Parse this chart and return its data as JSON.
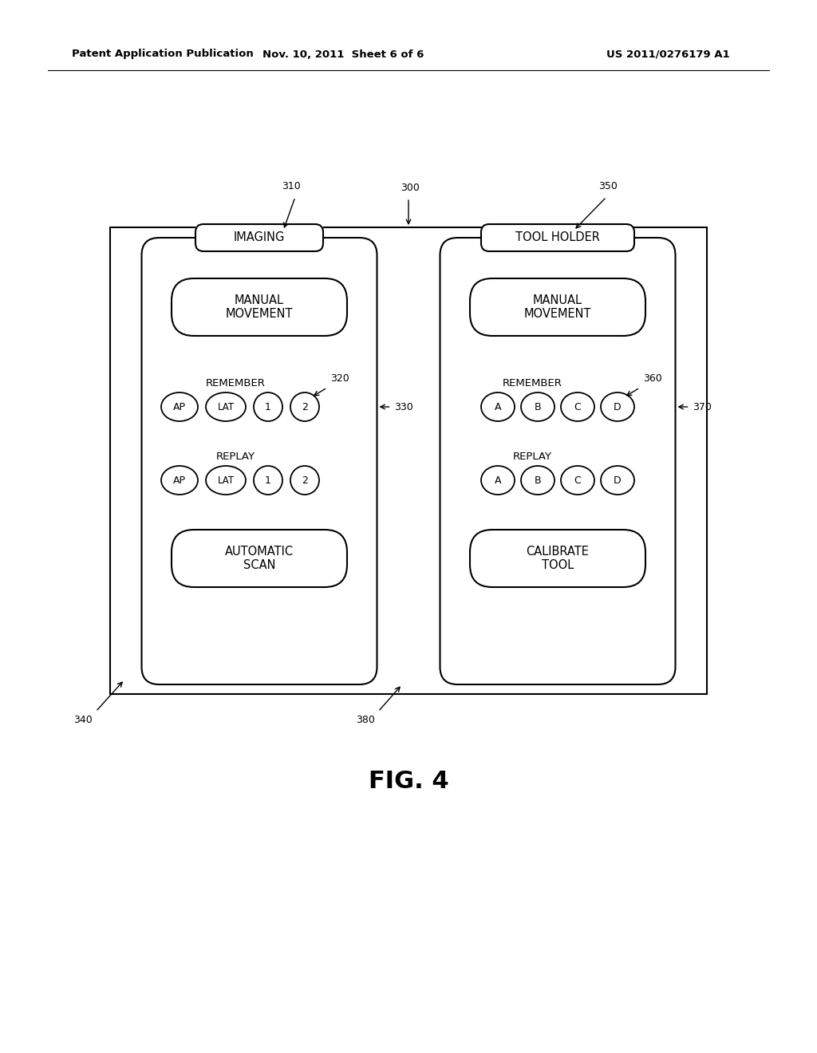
{
  "bg_color": "#ffffff",
  "header_left": "Patent Application Publication",
  "header_mid": "Nov. 10, 2011  Sheet 6 of 6",
  "header_right": "US 2011/0276179 A1",
  "fig_label": "FIG. 4",
  "imaging_title": "IMAGING",
  "tool_holder_title": "TOOL HOLDER",
  "manual_movement": "MANUAL\nMOVEMENT",
  "remember": "REMEMBER",
  "remember_btns_1": [
    "AP",
    "LAT",
    "1",
    "2"
  ],
  "replay": "REPLAY",
  "replay_btns_1": [
    "AP",
    "LAT",
    "1",
    "2"
  ],
  "auto_scan": "AUTOMATIC\nSCAN",
  "remember_btns_2": [
    "A",
    "B",
    "C",
    "D"
  ],
  "replay_btns_2": [
    "A",
    "B",
    "C",
    "D"
  ],
  "calibrate_tool": "CALIBRATE\nTOOL",
  "label_300": "300",
  "label_310": "310",
  "label_320": "320",
  "label_330": "330",
  "label_340": "340",
  "label_350": "350",
  "label_360": "360",
  "label_370": "370",
  "label_380": "380"
}
